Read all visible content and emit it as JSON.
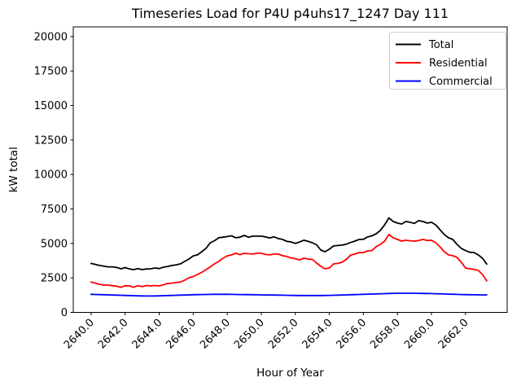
{
  "chart_data": {
    "type": "line",
    "title": "Timeseries Load for P4U p4uhs17_1247  Day 111",
    "xlabel": "Hour of Year",
    "ylabel": "kW total",
    "grid": false,
    "legend_position": "upper right",
    "background_color": "#ffffff",
    "xlim": [
      2638.95,
      2664.45
    ],
    "ylim": [
      0,
      20700
    ],
    "x_ticks": [
      2640,
      2642,
      2644,
      2646,
      2648,
      2650,
      2652,
      2654,
      2656,
      2658,
      2660,
      2662
    ],
    "x_tick_labels": [
      "2640.0",
      "2642.0",
      "2644.0",
      "2646.0",
      "2648.0",
      "2650.0",
      "2652.0",
      "2654.0",
      "2656.0",
      "2658.0",
      "2660.0",
      "2662.0"
    ],
    "y_ticks": [
      0,
      2500,
      5000,
      7500,
      10000,
      12500,
      15000,
      17500,
      20000
    ],
    "y_tick_labels": [
      "0",
      "2500",
      "5000",
      "7500",
      "10000",
      "12500",
      "15000",
      "17500",
      "20000"
    ],
    "x": [
      2640.0,
      2640.25,
      2640.5,
      2640.75,
      2641.0,
      2641.25,
      2641.5,
      2641.75,
      2642.0,
      2642.25,
      2642.5,
      2642.75,
      2643.0,
      2643.25,
      2643.5,
      2643.75,
      2644.0,
      2644.25,
      2644.5,
      2644.75,
      2645.0,
      2645.25,
      2645.5,
      2645.75,
      2646.0,
      2646.25,
      2646.5,
      2646.75,
      2647.0,
      2647.25,
      2647.5,
      2647.75,
      2648.0,
      2648.25,
      2648.5,
      2648.75,
      2649.0,
      2649.25,
      2649.5,
      2649.75,
      2650.0,
      2650.25,
      2650.5,
      2650.75,
      2651.0,
      2651.25,
      2651.5,
      2651.75,
      2652.0,
      2652.25,
      2652.5,
      2652.75,
      2653.0,
      2653.25,
      2653.5,
      2653.75,
      2654.0,
      2654.25,
      2654.5,
      2654.75,
      2655.0,
      2655.25,
      2655.5,
      2655.75,
      2656.0,
      2656.25,
      2656.5,
      2656.75,
      2657.0,
      2657.25,
      2657.5,
      2657.75,
      2658.0,
      2658.25,
      2658.5,
      2658.75,
      2659.0,
      2659.25,
      2659.5,
      2659.75,
      2660.0,
      2660.25,
      2660.5,
      2660.75,
      2661.0,
      2661.25,
      2661.5,
      2661.75,
      2662.0,
      2662.25,
      2662.5,
      2662.75,
      2663.0,
      2663.25
    ],
    "series": [
      {
        "name": "Total",
        "color": "#000000",
        "values": [
          3550,
          3480,
          3400,
          3350,
          3300,
          3300,
          3260,
          3160,
          3250,
          3150,
          3100,
          3180,
          3100,
          3150,
          3160,
          3220,
          3180,
          3280,
          3330,
          3400,
          3450,
          3520,
          3700,
          3870,
          4100,
          4170,
          4400,
          4640,
          5050,
          5200,
          5410,
          5450,
          5500,
          5550,
          5410,
          5450,
          5580,
          5450,
          5530,
          5530,
          5530,
          5470,
          5400,
          5480,
          5350,
          5290,
          5150,
          5110,
          5000,
          5100,
          5230,
          5150,
          5050,
          4900,
          4520,
          4400,
          4580,
          4820,
          4850,
          4880,
          4950,
          5070,
          5170,
          5290,
          5300,
          5470,
          5550,
          5700,
          5950,
          6350,
          6850,
          6590,
          6470,
          6410,
          6590,
          6530,
          6450,
          6650,
          6590,
          6470,
          6530,
          6350,
          6000,
          5650,
          5410,
          5290,
          4940,
          4640,
          4480,
          4360,
          4340,
          4170,
          3930,
          3500
        ]
      },
      {
        "name": "Residential",
        "color": "#ff0000",
        "values": [
          2200,
          2120,
          2040,
          1980,
          1980,
          1940,
          1900,
          1820,
          1940,
          1920,
          1820,
          1940,
          1880,
          1950,
          1920,
          1950,
          1920,
          2000,
          2100,
          2120,
          2160,
          2200,
          2340,
          2510,
          2600,
          2750,
          2900,
          3100,
          3300,
          3520,
          3700,
          3930,
          4100,
          4170,
          4290,
          4190,
          4290,
          4250,
          4230,
          4290,
          4290,
          4200,
          4170,
          4230,
          4230,
          4110,
          4050,
          3950,
          3890,
          3810,
          3930,
          3870,
          3840,
          3580,
          3340,
          3160,
          3220,
          3520,
          3550,
          3640,
          3850,
          4150,
          4230,
          4340,
          4340,
          4460,
          4480,
          4760,
          4940,
          5170,
          5650,
          5410,
          5290,
          5170,
          5230,
          5190,
          5170,
          5210,
          5290,
          5210,
          5230,
          5050,
          4760,
          4400,
          4170,
          4110,
          3990,
          3640,
          3220,
          3160,
          3120,
          3040,
          2750,
          2280
        ]
      },
      {
        "name": "Commercial",
        "color": "#0000ff",
        "values": [
          1310,
          1300,
          1290,
          1280,
          1270,
          1260,
          1250,
          1240,
          1230,
          1220,
          1210,
          1200,
          1195,
          1190,
          1190,
          1195,
          1200,
          1210,
          1220,
          1230,
          1240,
          1250,
          1260,
          1270,
          1280,
          1290,
          1295,
          1300,
          1305,
          1310,
          1310,
          1310,
          1310,
          1305,
          1300,
          1295,
          1290,
          1285,
          1280,
          1275,
          1270,
          1265,
          1260,
          1255,
          1250,
          1245,
          1240,
          1235,
          1230,
          1225,
          1220,
          1220,
          1220,
          1220,
          1225,
          1230,
          1235,
          1240,
          1250,
          1260,
          1270,
          1280,
          1290,
          1300,
          1310,
          1320,
          1330,
          1340,
          1350,
          1360,
          1370,
          1380,
          1385,
          1390,
          1390,
          1390,
          1385,
          1380,
          1375,
          1370,
          1365,
          1355,
          1345,
          1335,
          1325,
          1315,
          1305,
          1295,
          1285,
          1280,
          1275,
          1272,
          1270,
          1270
        ]
      }
    ]
  }
}
